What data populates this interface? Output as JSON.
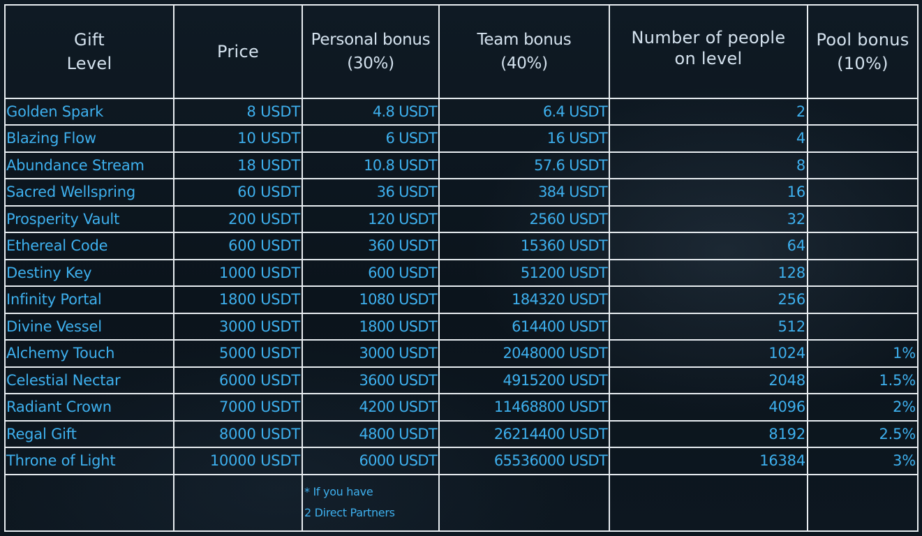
{
  "headers": {
    "gift_level": [
      "Gift",
      "Level"
    ],
    "price": "Price",
    "personal_bonus": [
      "Personal bonus",
      "(30%)"
    ],
    "team_bonus": [
      "Team bonus",
      "(40%)"
    ],
    "people_on_level": [
      "Number of people",
      "on level"
    ],
    "pool_bonus": [
      "Pool bonus",
      "(10%)"
    ]
  },
  "rows": [
    {
      "level": "Golden Spark",
      "price": "8 USDT",
      "personal": "4.8 USDT",
      "team": "6.4 USDT",
      "people": "2",
      "pool": ""
    },
    {
      "level": "Blazing Flow",
      "price": "10 USDT",
      "personal": "6 USDT",
      "team": "16 USDT",
      "people": "4",
      "pool": ""
    },
    {
      "level": "Abundance Stream",
      "price": "18 USDT",
      "personal": "10.8 USDT",
      "team": "57.6 USDT",
      "people": "8",
      "pool": ""
    },
    {
      "level": "Sacred Wellspring",
      "price": "60 USDT",
      "personal": "36 USDT",
      "team": "384 USDT",
      "people": "16",
      "pool": ""
    },
    {
      "level": "Prosperity Vault",
      "price": "200 USDT",
      "personal": "120 USDT",
      "team": "2560 USDT",
      "people": "32",
      "pool": ""
    },
    {
      "level": "Ethereal Code",
      "price": "600 USDT",
      "personal": "360 USDT",
      "team": "15360 USDT",
      "people": "64",
      "pool": ""
    },
    {
      "level": "Destiny Key",
      "price": "1000 USDT",
      "personal": "600 USDT",
      "team": "51200 USDT",
      "people": "128",
      "pool": ""
    },
    {
      "level": "Infinity Portal",
      "price": "1800 USDT",
      "personal": "1080 USDT",
      "team": "184320 USDT",
      "people": "256",
      "pool": ""
    },
    {
      "level": "Divine Vessel",
      "price": "3000 USDT",
      "personal": "1800 USDT",
      "team": "614400 USDT",
      "people": "512",
      "pool": ""
    },
    {
      "level": "Alchemy Touch",
      "price": "5000 USDT",
      "personal": "3000 USDT",
      "team": "2048000 USDT",
      "people": "1024",
      "pool": "1%"
    },
    {
      "level": "Celestial Nectar",
      "price": "6000 USDT",
      "personal": "3600 USDT",
      "team": "4915200 USDT",
      "people": "2048",
      "pool": "1.5%"
    },
    {
      "level": "Radiant Crown",
      "price": "7000 USDT",
      "personal": "4200 USDT",
      "team": "11468800 USDT",
      "people": "4096",
      "pool": "2%"
    },
    {
      "level": "Regal Gift",
      "price": "8000 USDT",
      "personal": "4800 USDT",
      "team": "26214400 USDT",
      "people": "8192",
      "pool": "2.5%"
    },
    {
      "level": "Throne of Light",
      "price": "10000 USDT",
      "personal": "6000 USDT",
      "team": "65536000 USDT",
      "people": "16384",
      "pool": "3%"
    }
  ],
  "note": [
    "* If you have",
    "2 Direct Partners"
  ]
}
